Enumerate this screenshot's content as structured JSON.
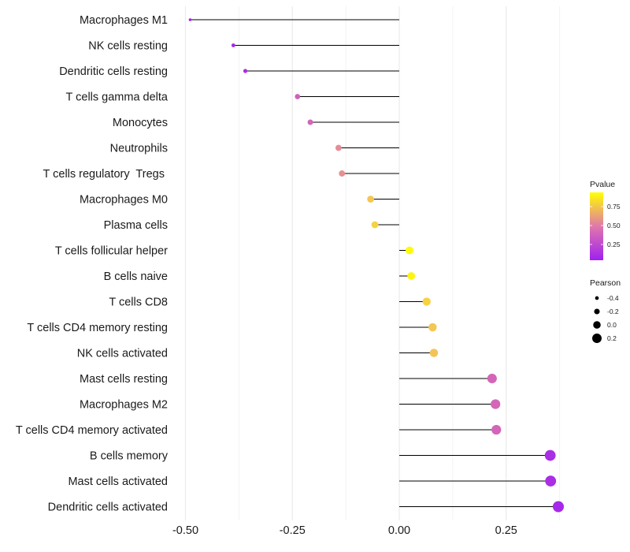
{
  "chart_data": {
    "type": "scatter",
    "subtype": "lollipop",
    "title": "",
    "xlabel": "",
    "ylabel": "",
    "xlim": [
      -0.52,
      0.39
    ],
    "x_ticks": [
      -0.5,
      -0.25,
      0.0,
      0.25
    ],
    "x_tick_labels": [
      "-0.50",
      "-0.25",
      "0.00",
      "0.25"
    ],
    "grid": true,
    "categories": [
      "Macrophages M1",
      "NK cells resting",
      "Dendritic cells resting",
      "T cells gamma delta",
      "Monocytes",
      "Neutrophils",
      "T cells regulatory  Tregs ",
      "Macrophages M0",
      "Plasma cells",
      "T cells follicular helper",
      "B cells naive",
      "T cells CD8",
      "T cells CD4 memory resting",
      "NK cells activated",
      "Mast cells resting",
      "Macrophages M2",
      "T cells CD4 memory activated",
      "B cells memory",
      "Mast cells activated",
      "Dendritic cells activated"
    ],
    "series": [
      {
        "name": "Pearson",
        "values": [
          -0.489,
          -0.388,
          -0.36,
          -0.238,
          -0.208,
          -0.142,
          -0.134,
          -0.067,
          -0.057,
          0.024,
          0.028,
          0.064,
          0.078,
          0.081,
          0.217,
          0.225,
          0.227,
          0.353,
          0.354,
          0.372
        ]
      },
      {
        "name": "Pvalue",
        "values": [
          0.01,
          0.05,
          0.07,
          0.37,
          0.4,
          0.6,
          0.62,
          0.85,
          0.88,
          0.99,
          0.97,
          0.88,
          0.85,
          0.84,
          0.4,
          0.4,
          0.4,
          0.08,
          0.08,
          0.05
        ]
      }
    ],
    "color_scale": {
      "title": "Pvalue",
      "low_color": "#A020F0",
      "high_color": "#FFFF00",
      "range": [
        0.0,
        1.0
      ],
      "ticks": [
        0.25,
        0.5,
        0.75
      ],
      "tick_labels": [
        "0.25",
        "0.50",
        "0.75"
      ],
      "legend_position": "right"
    },
    "size_scale": {
      "title": "Pearson",
      "range": [
        -0.49,
        0.37
      ],
      "ticks": [
        -0.4,
        -0.2,
        0.0,
        0.2
      ],
      "tick_labels": [
        "-0.4",
        "-0.2",
        "0.0",
        "0.2"
      ],
      "legend_position": "right"
    },
    "segment_color": "#000000"
  }
}
